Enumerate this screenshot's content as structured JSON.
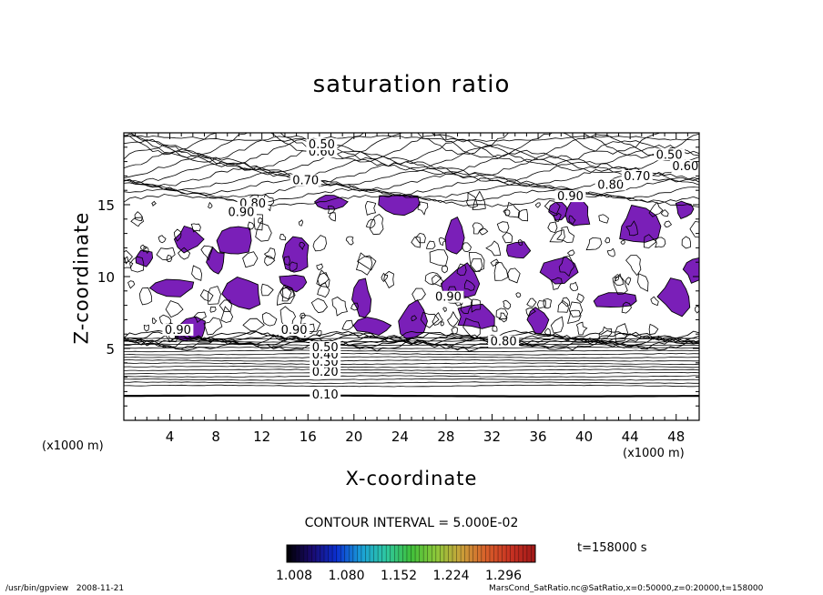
{
  "chart_data": {
    "type": "heatmap",
    "title": "saturation ratio",
    "xlabel": "X-coordinate",
    "ylabel": "Z-coordinate",
    "x_unit": "(x1000 m)",
    "y_unit": "(x1000 m)",
    "xlim": [
      0,
      50
    ],
    "ylim": [
      0,
      20
    ],
    "x_ticks": [
      4,
      8,
      12,
      16,
      20,
      24,
      28,
      32,
      36,
      40,
      44,
      48
    ],
    "y_ticks": [
      5,
      10,
      15
    ],
    "contour_interval_text": "CONTOUR INTERVAL = 5.000E-02",
    "contour_labels": [
      {
        "text": "0.10",
        "x": 17.5,
        "z": 1.7
      },
      {
        "text": "0.20",
        "x": 17.5,
        "z": 3.3
      },
      {
        "text": "0.30",
        "x": 17.5,
        "z": 4.0
      },
      {
        "text": "0.40",
        "x": 17.5,
        "z": 4.5
      },
      {
        "text": "0.50",
        "x": 17.5,
        "z": 5.0
      },
      {
        "text": "0.90",
        "x": 4.7,
        "z": 6.2
      },
      {
        "text": "0.90",
        "x": 14.8,
        "z": 6.2
      },
      {
        "text": "0.90",
        "x": 28.2,
        "z": 8.5
      },
      {
        "text": "0.80",
        "x": 33.0,
        "z": 5.4
      },
      {
        "text": "0.80",
        "x": 11.2,
        "z": 15.0
      },
      {
        "text": "0.90",
        "x": 10.2,
        "z": 14.4
      },
      {
        "text": "0.70",
        "x": 15.8,
        "z": 16.6
      },
      {
        "text": "0.60",
        "x": 17.2,
        "z": 18.6
      },
      {
        "text": "0.50",
        "x": 17.2,
        "z": 19.1
      },
      {
        "text": "0.90",
        "x": 38.8,
        "z": 15.5
      },
      {
        "text": "0.80",
        "x": 42.3,
        "z": 16.3
      },
      {
        "text": "0.70",
        "x": 44.6,
        "z": 16.9
      },
      {
        "text": "0.60",
        "x": 48.8,
        "z": 17.6
      },
      {
        "text": "0.50",
        "x": 47.4,
        "z": 18.4
      }
    ],
    "colorbar": {
      "labels": [
        "1.008",
        "1.080",
        "1.152",
        "1.224",
        "1.296"
      ],
      "colors": [
        "#000000",
        "#1a0a6e",
        "#0b2fd0",
        "#1aa0d8",
        "#2ec8a0",
        "#3fbf3a",
        "#8cc83a",
        "#c9a23a",
        "#d8602a",
        "#c83222",
        "#a01818"
      ]
    },
    "supersaturated_fill_color": "#7a1fb8",
    "supersaturated_regions": [
      {
        "x": 1.7,
        "z": 11.3
      },
      {
        "x": 5.6,
        "z": 12.6
      },
      {
        "x": 9.6,
        "z": 12.5
      },
      {
        "x": 4.3,
        "z": 9.2
      },
      {
        "x": 8.0,
        "z": 11.0
      },
      {
        "x": 15.1,
        "z": 11.4
      },
      {
        "x": 17.9,
        "z": 15.2
      },
      {
        "x": 23.9,
        "z": 15.0
      },
      {
        "x": 28.7,
        "z": 12.7
      },
      {
        "x": 34.4,
        "z": 11.8
      },
      {
        "x": 37.9,
        "z": 10.3
      },
      {
        "x": 44.8,
        "z": 13.5
      },
      {
        "x": 48.7,
        "z": 14.7
      },
      {
        "x": 49.7,
        "z": 10.5
      },
      {
        "x": 48.0,
        "z": 8.6
      },
      {
        "x": 42.7,
        "z": 8.3
      },
      {
        "x": 36.0,
        "z": 7.0
      },
      {
        "x": 25.1,
        "z": 6.9
      },
      {
        "x": 21.6,
        "z": 6.6
      },
      {
        "x": 30.6,
        "z": 7.2
      },
      {
        "x": 20.7,
        "z": 8.4
      },
      {
        "x": 14.6,
        "z": 9.6
      },
      {
        "x": 5.8,
        "z": 6.3
      },
      {
        "x": 10.4,
        "z": 8.8
      },
      {
        "x": 37.8,
        "z": 14.5
      },
      {
        "x": 39.4,
        "z": 14.3
      },
      {
        "x": 29.3,
        "z": 9.5
      }
    ]
  },
  "footer": {
    "time_label": "t=158000 s",
    "program_path": "/usr/bin/gpview",
    "date": "2008-11-21",
    "source_info": "MarsCond_SatRatio.nc@SatRatio,x=0:50000,z=0:20000,t=158000"
  }
}
